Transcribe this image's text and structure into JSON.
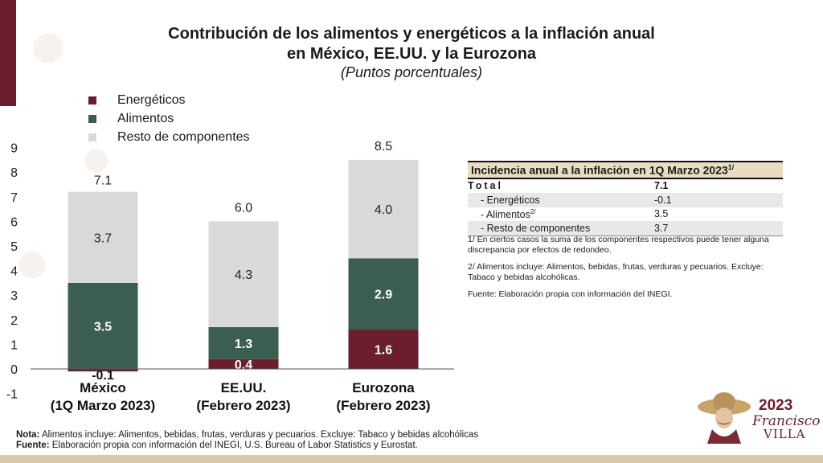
{
  "header": {
    "title_line1": "Contribución de los alimentos y energéticos a la inflación anual",
    "title_line2": "en México, EE.UU. y la Eurozona",
    "subtitle": "(Puntos porcentuales)"
  },
  "colors": {
    "energeticos": "#6b1e2e",
    "alimentos": "#3b5e50",
    "resto": "#d9d9d9",
    "accent": "#6b1e2e"
  },
  "chart_data": {
    "type": "bar",
    "stacked": true,
    "categories": [
      "México\n(1Q Marzo 2023)",
      "EE.UU.\n(Febrero 2023)",
      "Eurozona\n(Febrero 2023)"
    ],
    "category_lines": [
      [
        "México",
        "(1Q Marzo 2023)"
      ],
      [
        "EE.UU.",
        "(Febrero 2023)"
      ],
      [
        "Eurozona",
        "(Febrero 2023)"
      ]
    ],
    "series": [
      {
        "name": "Energéticos",
        "values": [
          -0.1,
          0.4,
          1.6
        ],
        "labels": [
          "-0.1",
          "0.4",
          "1.6"
        ]
      },
      {
        "name": "Alimentos",
        "values": [
          3.5,
          1.3,
          2.9
        ],
        "labels": [
          "3.5",
          "1.3",
          "2.9"
        ]
      },
      {
        "name": "Resto de componentes",
        "values": [
          3.7,
          4.3,
          4.0
        ],
        "labels": [
          "3.7",
          "4.3",
          "4.0"
        ]
      }
    ],
    "totals": [
      7.1,
      6.0,
      8.5
    ],
    "total_labels": [
      "7.1",
      "6.0",
      "8.5"
    ],
    "ylim": [
      -1,
      9
    ],
    "yticks": [
      "9",
      "8",
      "7",
      "6",
      "5",
      "4",
      "3",
      "2",
      "1",
      "0",
      "-1"
    ],
    "ytick_values": [
      9,
      8,
      7,
      6,
      5,
      4,
      3,
      2,
      1,
      0,
      -1
    ],
    "legend_position": "top-left",
    "grid": false
  },
  "legend": {
    "items": [
      "Energéticos",
      "Alimentos",
      "Resto de componentes"
    ]
  },
  "incidence_table": {
    "title": "Incidencia anual a la inflación en 1Q Marzo 2023",
    "title_sup": "1/",
    "total_label": "Total",
    "total_value": "7.1",
    "rows": [
      {
        "label": "- Energéticos",
        "sup": "",
        "value": "-0.1"
      },
      {
        "label": "- Alimentos",
        "sup": "2/",
        "value": "3.5"
      },
      {
        "label": "- Resto de componentes",
        "sup": "",
        "value": "3.7"
      }
    ]
  },
  "notes": {
    "note1": "1/ En ciertos casos la suma de los componentes respectivos  puede tener alguna discrepancia por efectos de redondeo.",
    "note2": "2/ Alimentos incluye: Alimentos, bebidas, frutas, verduras y pecuarios. Excluye: Tabaco y bebidas alcohólicas.",
    "source": "Fuente: Elaboración propia con información del INEGI."
  },
  "footer": {
    "nota_label": "Nota:",
    "nota_text": " Alimentos incluye: Alimentos, bebidas, frutas, verduras y pecuarios. Excluye: Tabaco y bebidas alcohólicas",
    "fuente_label": "Fuente:",
    "fuente_text": " Elaboración propia con información del INEGI, U.S. Bureau of Labor Statistics y Eurostat."
  },
  "logo": {
    "year": "2023",
    "name1": "Francisco",
    "name2": "VILLA"
  }
}
